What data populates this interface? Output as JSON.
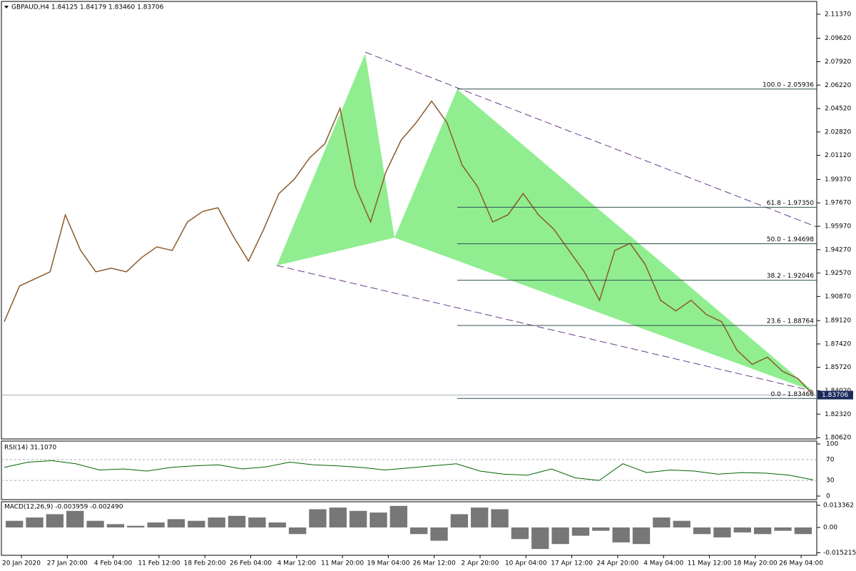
{
  "header": {
    "title": "GBPAUD,H4  1.84125 1.84179 1.83460 1.83706"
  },
  "price_ylim": [
    1.8052,
    2.123
  ],
  "price_ticks": [
    {
      "value": 2.1137,
      "label": "2.11370"
    },
    {
      "value": 2.0962,
      "label": "2.09620"
    },
    {
      "value": 2.0792,
      "label": "2.07920"
    },
    {
      "value": 2.0622,
      "label": "2.06220"
    },
    {
      "value": 2.0452,
      "label": "2.04520"
    },
    {
      "value": 2.0282,
      "label": "2.02820"
    },
    {
      "value": 2.0112,
      "label": "2.01120"
    },
    {
      "value": 1.9937,
      "label": "1.99370"
    },
    {
      "value": 1.9767,
      "label": "1.97670"
    },
    {
      "value": 1.9597,
      "label": "1.95970"
    },
    {
      "value": 1.9427,
      "label": "1.94270"
    },
    {
      "value": 1.9257,
      "label": "1.92570"
    },
    {
      "value": 1.9087,
      "label": "1.90870"
    },
    {
      "value": 1.8912,
      "label": "1.89120"
    },
    {
      "value": 1.8742,
      "label": "1.87420"
    },
    {
      "value": 1.8572,
      "label": "1.85720"
    },
    {
      "value": 1.8402,
      "label": "1.84020"
    },
    {
      "value": 1.8232,
      "label": "1.82320"
    },
    {
      "value": 1.8062,
      "label": "1.80620"
    }
  ],
  "closes": [
    1.8904,
    1.9163,
    1.9214,
    1.9266,
    1.968,
    1.9421,
    1.9266,
    1.9292,
    1.9266,
    1.937,
    1.9447,
    1.9421,
    1.9628,
    1.9705,
    1.9731,
    1.9525,
    1.9344,
    1.9576,
    1.9835,
    1.9938,
    2.0093,
    2.0196,
    2.0455,
    1.9886,
    1.9628,
    1.999,
    2.0222,
    2.0351,
    2.0506,
    2.0351,
    2.0041,
    1.9886,
    1.9628,
    1.968,
    1.9835,
    1.968,
    1.9576,
    1.9421,
    1.9266,
    1.9059,
    1.9421,
    1.9473,
    1.9318,
    1.9059,
    1.8982,
    1.9059,
    1.8956,
    1.8904,
    1.8698,
    1.8594,
    1.8646,
    1.8543,
    1.8491,
    1.8371
  ],
  "fib_levels": [
    {
      "value": 2.05936,
      "label": "100.0 - 2.05936"
    },
    {
      "value": 1.9735,
      "label": "61.8 - 1.97350"
    },
    {
      "value": 1.94698,
      "label": "50.0 - 1.94698"
    },
    {
      "value": 1.92046,
      "label": "38.2 - 1.92046"
    },
    {
      "value": 1.88764,
      "label": "23.6 - 1.88764"
    },
    {
      "value": 1.8346,
      "label": "0.0 - 1.83460"
    }
  ],
  "current_price": {
    "value": 1.83706,
    "label": "1.83706"
  },
  "rsi": {
    "title": "RSI(14) 31.1070",
    "ylim": [
      0,
      100
    ],
    "ticks": [
      100,
      70,
      30,
      0
    ],
    "values": [
      55,
      65,
      68,
      62,
      50,
      52,
      48,
      55,
      58,
      60,
      52,
      56,
      65,
      60,
      58,
      55,
      50,
      54,
      58,
      62,
      48,
      42,
      40,
      52,
      35,
      30,
      62,
      45,
      50,
      48,
      42,
      45,
      44,
      40,
      31
    ]
  },
  "macd": {
    "title": "MACD(12,26,9) -0.003959 -0.002490",
    "ylim": [
      -0.0168,
      0.0155
    ],
    "ticks": [
      0.013362,
      {
        "value": 0,
        "label": "0.00"
      },
      -0.015215
    ],
    "values": [
      0.004,
      0.006,
      0.008,
      0.01,
      0.004,
      0.002,
      0.001,
      0.003,
      0.005,
      0.004,
      0.006,
      0.007,
      0.006,
      0.003,
      -0.004,
      0.011,
      0.012,
      0.01,
      0.009,
      0.013,
      -0.004,
      -0.008,
      0.008,
      0.012,
      0.011,
      -0.007,
      -0.013,
      -0.01,
      -0.005,
      -0.002,
      -0.009,
      -0.01,
      0.006,
      0.004,
      -0.004,
      -0.006,
      -0.003,
      -0.004,
      -0.002,
      -0.004
    ]
  },
  "time_labels": [
    "20 Jan 2020",
    "27 Jan 20:00",
    "4 Feb 04:00",
    "11 Feb 12:00",
    "18 Feb 20:00",
    "26 Feb 04:00",
    "4 Mar 12:00",
    "11 Mar 20:00",
    "19 Mar 04:00",
    "26 Mar 12:00",
    "2 Apr 20:00",
    "10 Apr 04:00",
    "17 Apr 12:00",
    "24 Apr 20:00",
    "4 May 04:00",
    "11 May 12:00",
    "18 May 20:00",
    "26 May 04:00"
  ]
}
